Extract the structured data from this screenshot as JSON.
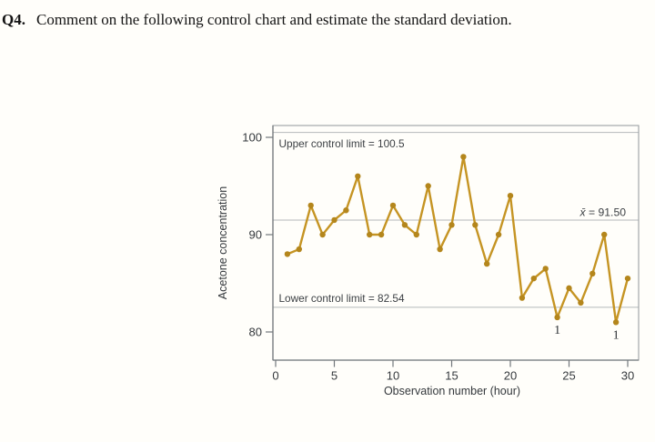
{
  "question": {
    "number": "Q4.",
    "text": "Comment on the following control chart and estimate the standard deviation."
  },
  "chart_data": {
    "type": "line",
    "subtype": "individuals-control-chart",
    "title": "",
    "xlabel": "Observation number (hour)",
    "ylabel": "Acetone concentration",
    "x": [
      1,
      2,
      3,
      4,
      5,
      6,
      7,
      8,
      9,
      10,
      11,
      12,
      13,
      14,
      15,
      16,
      17,
      18,
      19,
      20,
      21,
      22,
      23,
      24,
      25,
      26,
      27,
      28,
      29,
      30
    ],
    "values": [
      88,
      88.5,
      93,
      90,
      91.5,
      92.5,
      96,
      90,
      90,
      93,
      91,
      90,
      95,
      88.5,
      91,
      98,
      91,
      87,
      90,
      94,
      83.5,
      85.5,
      86.5,
      81.5,
      84.5,
      83,
      86,
      90,
      81,
      85.5
    ],
    "xlim": [
      0,
      30
    ],
    "ylim": [
      77,
      101.5
    ],
    "xticks": [
      0,
      5,
      10,
      15,
      20,
      25,
      30
    ],
    "yticks": [
      100,
      90,
      80
    ],
    "upper_control_limit": {
      "value": 100.5,
      "label": "Upper control limit = 100.5"
    },
    "center_line": {
      "value": 91.5,
      "label": "x̄ = 91.50",
      "label_symbol": "x̄",
      "label_rest": " = 91.50"
    },
    "lower_control_limit": {
      "value": 82.54,
      "label": "Lower control limit = 82.54"
    },
    "out_of_control_flags": [
      {
        "x": 24,
        "label": "1"
      },
      {
        "x": 29,
        "label": "1"
      }
    ],
    "legend": "none",
    "grid": "control-limit and center lines only",
    "series_color": "#c59423",
    "marker_color": "#b4861c",
    "gridline_color": "#b5b8bb",
    "frame_color": "#9ba0a4",
    "axis_color": "#72777b",
    "text_color": "#3b3f43"
  }
}
